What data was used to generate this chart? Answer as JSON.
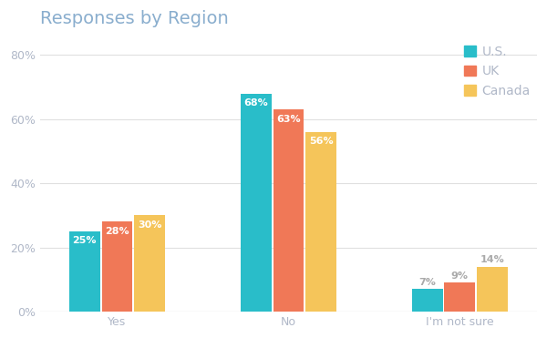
{
  "title": "Responses by Region",
  "categories": [
    "Yes",
    "No",
    "I'm not sure"
  ],
  "series": [
    {
      "name": "U.S.",
      "color": "#29bdc9",
      "values": [
        25,
        68,
        7
      ]
    },
    {
      "name": "UK",
      "color": "#f07857",
      "values": [
        28,
        63,
        9
      ]
    },
    {
      "name": "Canada",
      "color": "#f5c55a",
      "values": [
        30,
        56,
        14
      ]
    }
  ],
  "ylim": [
    0,
    85
  ],
  "yticks": [
    0,
    20,
    40,
    60,
    80
  ],
  "ytick_labels": [
    "0%",
    "20%",
    "40%",
    "60%",
    "80%"
  ],
  "bar_width": 0.18,
  "background_color": "#ffffff",
  "grid_color": "#e0e0e0",
  "title_color": "#8aaece",
  "label_color_inside": "#ffffff",
  "label_color_outside": "#aaaaaa",
  "tick_color": "#b0b8c8",
  "axis_label_color": "#b0b8c8",
  "title_fontsize": 14,
  "label_fontsize": 8,
  "tick_fontsize": 9,
  "legend_fontsize": 10,
  "inside_threshold": 15
}
